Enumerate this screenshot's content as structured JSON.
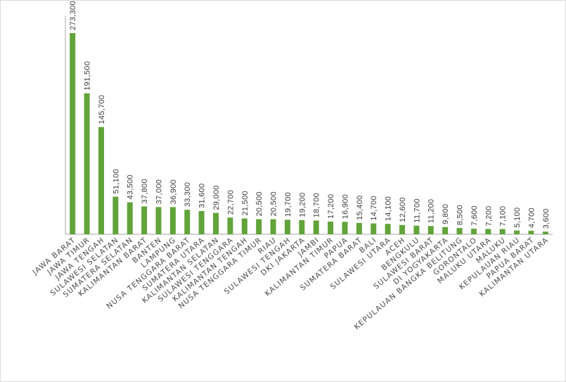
{
  "chart_data": {
    "type": "bar",
    "title": "",
    "xlabel": "",
    "ylabel": "",
    "ylim": [
      0,
      273300
    ],
    "grid": false,
    "legend": "none",
    "bar_color": "#62a33a",
    "label_color": "#3b3b3b",
    "categories": [
      "JAWA BARAT",
      "JAWA TIMUR",
      "JAWA TENGAH",
      "SULAWESI SELATAN",
      "SUMATERA SELATAN",
      "KALIMANTAN BARAT",
      "BANTEN",
      "LAMPUNG",
      "NUSA TENGGARA BARAT",
      "SUMATERA UTARA",
      "KALIMANTAN SELATAN",
      "SULAWESI TENGGARA",
      "KALIMANTAN TENGAH",
      "NUSA TENGGARA TIMUR",
      "RIAU",
      "SULAWESI TENGAH",
      "DKI JAKARTA",
      "JAMBI",
      "KALIMANTAN TIMUR",
      "PAPUA",
      "SUMATERA BARAT",
      "BALI",
      "SULAWESI UTARA",
      "ACEH",
      "BENGKULU",
      "SULAWESI BARAT",
      "DI YOGYAKARTA",
      "KEPULAUAN BANGKA BELITUNG",
      "GORONTALO",
      "MALUKU UTARA",
      "MALUKU",
      "KEPULAUAN RIAU",
      "PAPUA BARAT",
      "KALIMANTAN UTARA"
    ],
    "values": [
      273300,
      191500,
      145700,
      51100,
      43500,
      37800,
      37000,
      36900,
      33300,
      31600,
      29000,
      22700,
      21500,
      20500,
      20500,
      19700,
      19200,
      18700,
      17200,
      16900,
      15400,
      14700,
      14100,
      12600,
      11700,
      11200,
      9800,
      8500,
      7600,
      7200,
      7100,
      5100,
      4700,
      3600
    ],
    "value_labels": [
      "273,300",
      "191,500",
      "145,700",
      "51,100",
      "43,500",
      "37,800",
      "37,000",
      "36,900",
      "33,300",
      "31,600",
      "29,000",
      "22,700",
      "21,500",
      "20,500",
      "20,500",
      "19,700",
      "19,200",
      "18,700",
      "17,200",
      "16,900",
      "15,400",
      "14,700",
      "14,100",
      "12,600",
      "11,700",
      "11,200",
      "9,800",
      "8,500",
      "7,600",
      "7,200",
      "7,100",
      "5,100",
      "4,700",
      "3,600"
    ]
  }
}
